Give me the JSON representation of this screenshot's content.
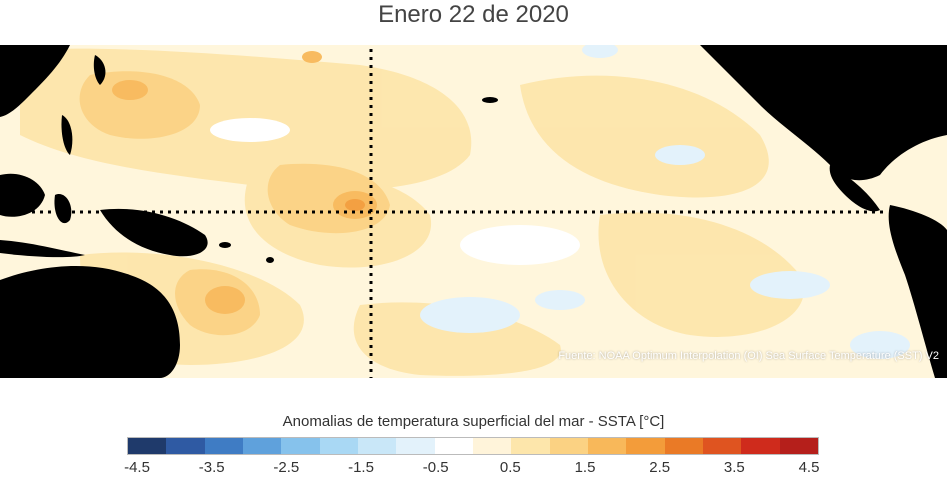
{
  "title": "Enero 22 de 2020",
  "source": "Fuente: NOAA Optimum Interpolation (OI) Sea Surface Temperature (SST) V2",
  "colorbar": {
    "label": "Anomalias de temperatura superficial del mar - SSTA  [°C]",
    "ticks": [
      "-4.5",
      "-3.5",
      "-2.5",
      "-1.5",
      "-0.5",
      "0.5",
      "1.5",
      "2.5",
      "3.5",
      "4.5"
    ],
    "colors": [
      "#1f3a6b",
      "#2f5aa3",
      "#3f7cc4",
      "#5fa1dc",
      "#86c2ec",
      "#a9d8f4",
      "#c9e7f8",
      "#e3f2fb",
      "#ffffff",
      "#fff4da",
      "#fde6ab",
      "#fbd283",
      "#f8b85a",
      "#f39c3a",
      "#ea7a26",
      "#df5420",
      "#cf2b1c",
      "#b51f1b"
    ]
  },
  "map_colors": {
    "ocean": "#fff6dc",
    "warm1": "#fde6ab",
    "warm2": "#fbd283",
    "warm3": "#f8b85a",
    "warm4": "#f39c3a",
    "cool": "#e3f2fb",
    "land": "#000000",
    "guide": "#000000"
  }
}
